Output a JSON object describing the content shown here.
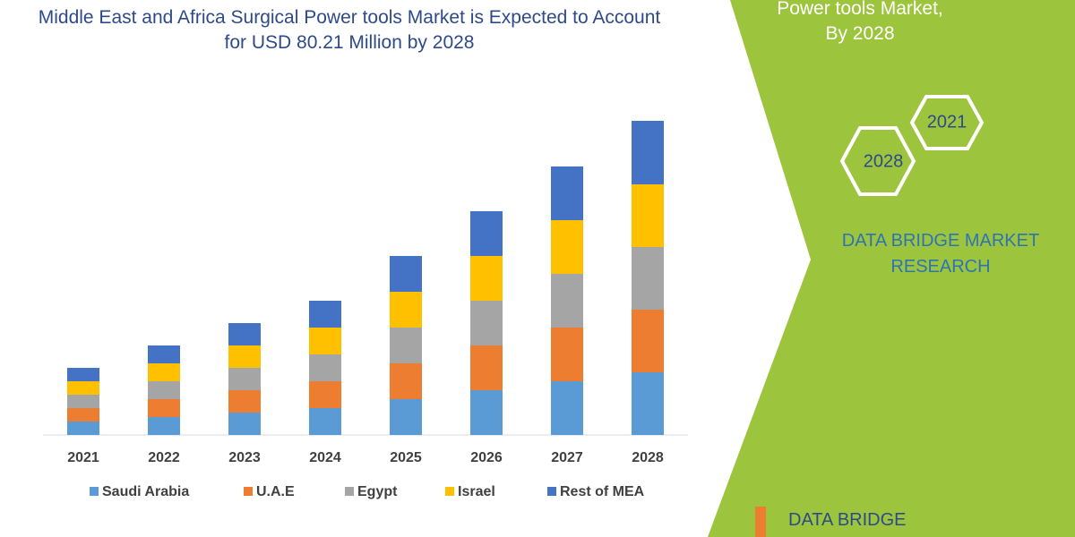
{
  "chart_data": {
    "type": "bar",
    "stacked": true,
    "title": "Middle East and Africa Surgical Power tools Market is Expected to Account for USD 80.21 Million by 2028",
    "categories": [
      "2021",
      "2022",
      "2023",
      "2024",
      "2025",
      "2026",
      "2027",
      "2028"
    ],
    "series": [
      {
        "name": "Saudi Arabia",
        "color": "#5b9bd5",
        "values": [
          15,
          20,
          25,
          30,
          40,
          50,
          60,
          70
        ]
      },
      {
        "name": "U.A.E",
        "color": "#ed7d31",
        "values": [
          15,
          20,
          25,
          30,
          40,
          50,
          60,
          70
        ]
      },
      {
        "name": "Egypt",
        "color": "#a5a5a5",
        "values": [
          15,
          20,
          25,
          30,
          40,
          50,
          60,
          70
        ]
      },
      {
        "name": "Israel",
        "color": "#ffc000",
        "values": [
          15,
          20,
          25,
          30,
          40,
          50,
          60,
          70
        ]
      },
      {
        "name": "Rest of MEA",
        "color": "#4472c4",
        "values": [
          15,
          20,
          25,
          30,
          40,
          50,
          60,
          71
        ]
      }
    ],
    "legend": "bottom"
  },
  "panel": {
    "text": "Power tools Market, By 2028",
    "hex_1": "2021",
    "hex_2": "2028",
    "brand": "DATA BRIDGE MARKET RESEARCH",
    "logo": "DATA BRIDGE"
  }
}
